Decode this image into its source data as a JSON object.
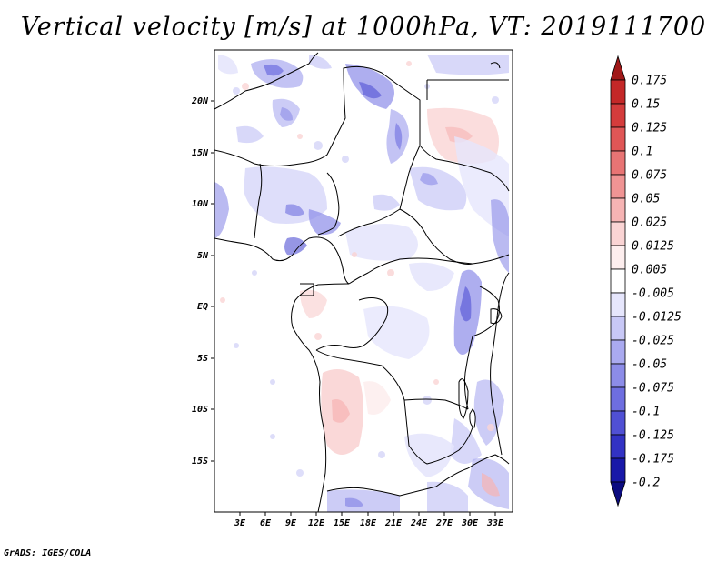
{
  "title": "Vertical velocity [m/s] at 1000hPa, VT: 2019111700",
  "footer": "GrADS: IGES/COLA",
  "map": {
    "lon_range": [
      0,
      35
    ],
    "lat_range": [
      -20,
      25
    ],
    "lat_ticks": [
      "20N",
      "15N",
      "10N",
      "5N",
      "EQ",
      "5S",
      "10S",
      "15S"
    ],
    "lon_ticks": [
      "3E",
      "6E",
      "9E",
      "12E",
      "15E",
      "18E",
      "21E",
      "24E",
      "27E",
      "30E",
      "33E"
    ]
  },
  "colorbar": {
    "levels": [
      "0.175",
      "0.15",
      "0.125",
      "0.1",
      "0.075",
      "0.05",
      "0.025",
      "0.0125",
      "0.005",
      "-0.005",
      "-0.0125",
      "-0.025",
      "-0.05",
      "-0.075",
      "-0.1",
      "-0.125",
      "-0.175",
      "-0.2"
    ],
    "colors": [
      "#a01818",
      "#c42828",
      "#d43c3c",
      "#e05656",
      "#e87474",
      "#f09494",
      "#f6b4b4",
      "#fad4d4",
      "#fdeeee",
      "#ffffff",
      "#e6e6fc",
      "#c8c8f6",
      "#aaaaf0",
      "#8c8ce8",
      "#6e6ee0",
      "#5050d4",
      "#3232c4",
      "#1818a8",
      "#0c0c80"
    ]
  }
}
